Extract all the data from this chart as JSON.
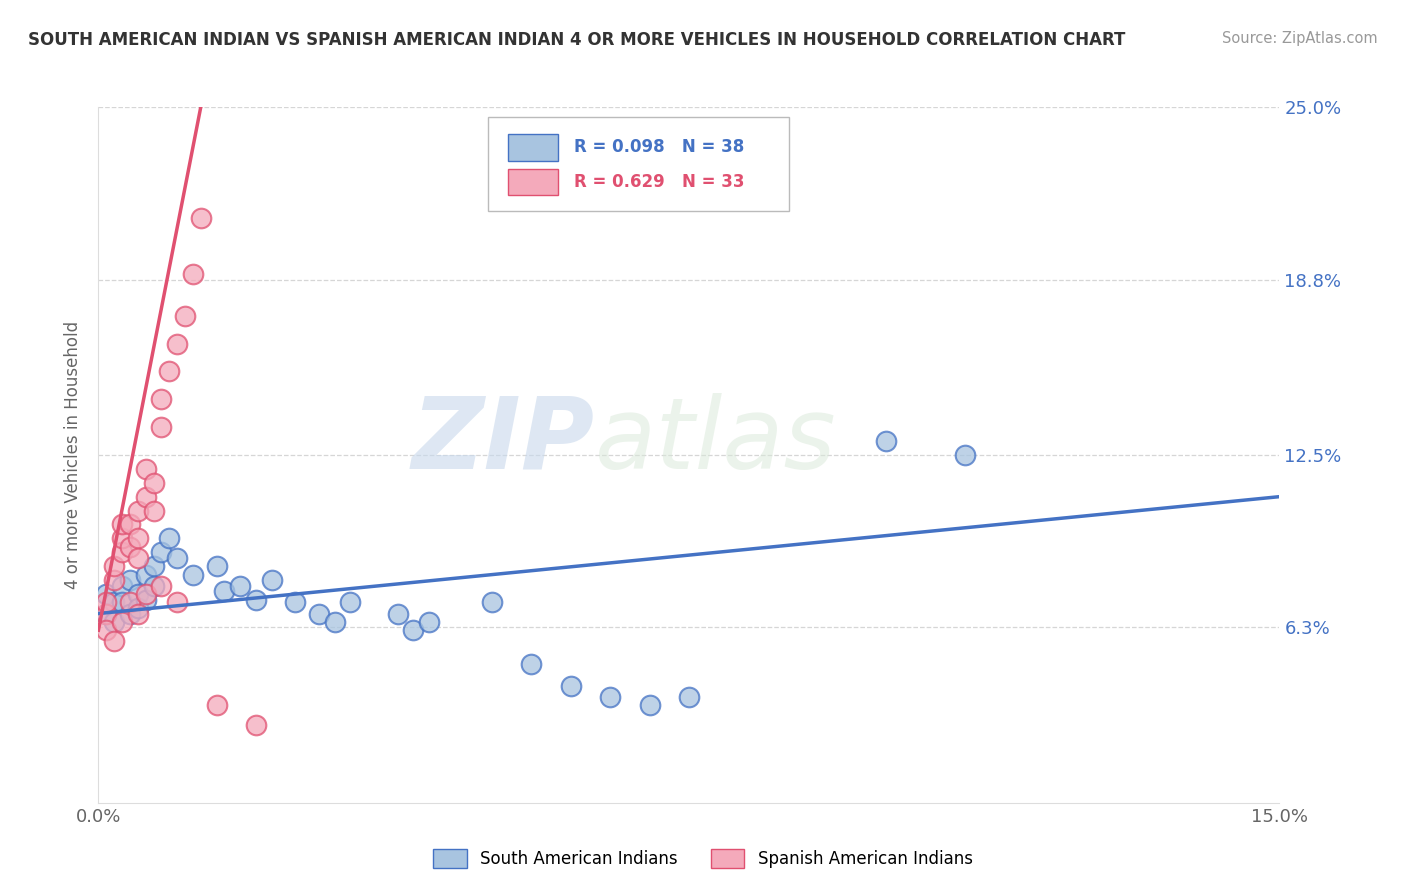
{
  "title": "SOUTH AMERICAN INDIAN VS SPANISH AMERICAN INDIAN 4 OR MORE VEHICLES IN HOUSEHOLD CORRELATION CHART",
  "source": "Source: ZipAtlas.com",
  "ylabel": "4 or more Vehicles in Household",
  "xlim": [
    0.0,
    0.15
  ],
  "ylim": [
    0.0,
    0.25
  ],
  "xtick_vals": [
    0.0,
    0.15
  ],
  "xticklabels": [
    "0.0%",
    "15.0%"
  ],
  "ytick_vals": [
    0.063,
    0.125,
    0.188,
    0.25
  ],
  "yticklabels": [
    "6.3%",
    "12.5%",
    "18.8%",
    "25.0%"
  ],
  "blue_R": 0.098,
  "blue_N": 38,
  "pink_R": 0.629,
  "pink_N": 33,
  "blue_fill": "#A8C4E0",
  "pink_fill": "#F4AABB",
  "blue_edge": "#4472C4",
  "pink_edge": "#E05070",
  "blue_line": "#4472C4",
  "pink_line": "#E05070",
  "legend_label_blue": "South American Indians",
  "legend_label_pink": "Spanish American Indians",
  "watermark_zip": "ZIP",
  "watermark_atlas": "atlas",
  "blue_points": [
    [
      0.001,
      0.075
    ],
    [
      0.001,
      0.068
    ],
    [
      0.002,
      0.072
    ],
    [
      0.002,
      0.065
    ],
    [
      0.003,
      0.078
    ],
    [
      0.003,
      0.072
    ],
    [
      0.004,
      0.08
    ],
    [
      0.004,
      0.068
    ],
    [
      0.005,
      0.075
    ],
    [
      0.005,
      0.07
    ],
    [
      0.006,
      0.082
    ],
    [
      0.006,
      0.073
    ],
    [
      0.007,
      0.085
    ],
    [
      0.007,
      0.078
    ],
    [
      0.008,
      0.09
    ],
    [
      0.009,
      0.095
    ],
    [
      0.01,
      0.088
    ],
    [
      0.012,
      0.082
    ],
    [
      0.015,
      0.085
    ],
    [
      0.016,
      0.076
    ],
    [
      0.018,
      0.078
    ],
    [
      0.02,
      0.073
    ],
    [
      0.022,
      0.08
    ],
    [
      0.025,
      0.072
    ],
    [
      0.028,
      0.068
    ],
    [
      0.03,
      0.065
    ],
    [
      0.032,
      0.072
    ],
    [
      0.038,
      0.068
    ],
    [
      0.04,
      0.062
    ],
    [
      0.042,
      0.065
    ],
    [
      0.05,
      0.072
    ],
    [
      0.055,
      0.05
    ],
    [
      0.06,
      0.042
    ],
    [
      0.065,
      0.038
    ],
    [
      0.07,
      0.035
    ],
    [
      0.075,
      0.038
    ],
    [
      0.1,
      0.13
    ],
    [
      0.11,
      0.125
    ]
  ],
  "pink_points": [
    [
      0.001,
      0.068
    ],
    [
      0.001,
      0.072
    ],
    [
      0.002,
      0.08
    ],
    [
      0.002,
      0.085
    ],
    [
      0.003,
      0.09
    ],
    [
      0.003,
      0.095
    ],
    [
      0.003,
      0.1
    ],
    [
      0.004,
      0.092
    ],
    [
      0.004,
      0.1
    ],
    [
      0.005,
      0.105
    ],
    [
      0.005,
      0.095
    ],
    [
      0.005,
      0.088
    ],
    [
      0.006,
      0.11
    ],
    [
      0.006,
      0.12
    ],
    [
      0.007,
      0.115
    ],
    [
      0.007,
      0.105
    ],
    [
      0.008,
      0.135
    ],
    [
      0.008,
      0.145
    ],
    [
      0.009,
      0.155
    ],
    [
      0.01,
      0.165
    ],
    [
      0.011,
      0.175
    ],
    [
      0.012,
      0.19
    ],
    [
      0.013,
      0.21
    ],
    [
      0.001,
      0.062
    ],
    [
      0.002,
      0.058
    ],
    [
      0.003,
      0.065
    ],
    [
      0.004,
      0.072
    ],
    [
      0.005,
      0.068
    ],
    [
      0.006,
      0.075
    ],
    [
      0.008,
      0.078
    ],
    [
      0.01,
      0.072
    ],
    [
      0.015,
      0.035
    ],
    [
      0.02,
      0.028
    ]
  ],
  "blue_line_x": [
    0.0,
    0.15
  ],
  "blue_line_y": [
    0.068,
    0.11
  ],
  "pink_line_x": [
    0.0,
    0.013
  ],
  "pink_line_y": [
    0.062,
    0.25
  ]
}
